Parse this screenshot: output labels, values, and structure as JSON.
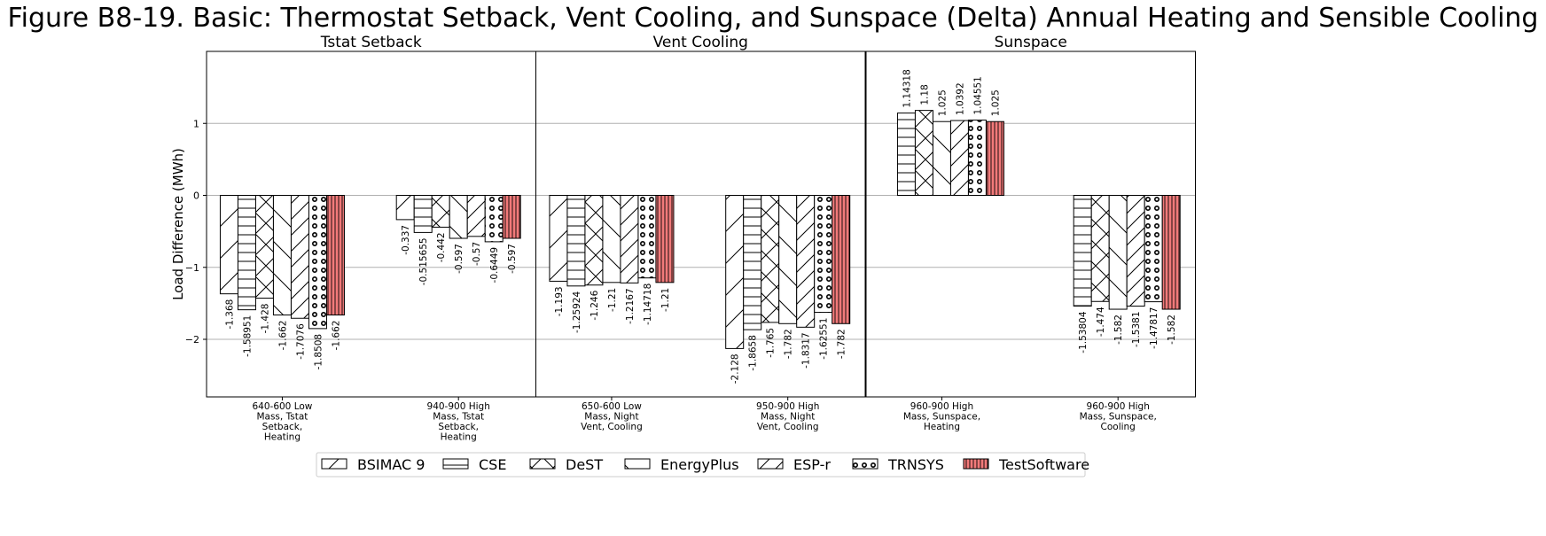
{
  "title": "Figure B8-19. Basic: Thermostat Setback, Vent Cooling, and Sunspace (Delta) Annual Heating and Sensible Cooling",
  "chart_data": {
    "type": "bar",
    "title": "Figure B8-19. Basic: Thermostat Setback, Vent Cooling, and Sunspace (Delta) Annual Heating and Sensible Cooling",
    "ylabel": "Load Difference (MWh)",
    "ylim": [
      -2.8,
      2.0
    ],
    "yticks": [
      -2,
      -1,
      0,
      1
    ],
    "grid": true,
    "legend_position": "bottom",
    "colors": {
      "TestSoftware": "#f27a7a",
      "default_fill": "#ffffff",
      "edge": "#000000"
    },
    "legend": [
      {
        "name": "BSIMAC 9",
        "pattern": "diag-up"
      },
      {
        "name": "CSE",
        "pattern": "horizontal"
      },
      {
        "name": "DeST",
        "pattern": "cross"
      },
      {
        "name": "EnergyPlus",
        "pattern": "diag-down"
      },
      {
        "name": "ESP-r",
        "pattern": "diag-up-dense"
      },
      {
        "name": "TRNSYS",
        "pattern": "circles"
      },
      {
        "name": "TestSoftware",
        "pattern": "vertical-red"
      }
    ],
    "panels": [
      {
        "title": "Tstat Setback",
        "groups": [
          {
            "label": [
              "640-600 Low",
              "Mass, Tstat",
              "Setback,",
              "Heating"
            ],
            "bars": [
              {
                "series": "BSIMAC 9",
                "value": -1.368,
                "label": "-1.368"
              },
              {
                "series": "CSE",
                "value": -1.58951,
                "label": "-1.58951"
              },
              {
                "series": "DeST",
                "value": -1.428,
                "label": "-1.428"
              },
              {
                "series": "EnergyPlus",
                "value": -1.662,
                "label": "-1.662"
              },
              {
                "series": "ESP-r",
                "value": -1.7076,
                "label": "-1.7076"
              },
              {
                "series": "TRNSYS",
                "value": -1.8508,
                "label": "-1.8508"
              },
              {
                "series": "TestSoftware",
                "value": -1.662,
                "label": "-1.662"
              }
            ]
          },
          {
            "label": [
              "940-900 High",
              "Mass, Tstat",
              "Setback,",
              "Heating"
            ],
            "bars": [
              {
                "series": "BSIMAC 9",
                "value": -0.337,
                "label": "-0.337"
              },
              {
                "series": "CSE",
                "value": -0.515655,
                "label": "-0.515655"
              },
              {
                "series": "DeST",
                "value": -0.442,
                "label": "-0.442"
              },
              {
                "series": "EnergyPlus",
                "value": -0.597,
                "label": "-0.597"
              },
              {
                "series": "ESP-r",
                "value": -0.57,
                "label": "-0.57"
              },
              {
                "series": "TRNSYS",
                "value": -0.6449,
                "label": "-0.6449"
              },
              {
                "series": "TestSoftware",
                "value": -0.597,
                "label": "-0.597"
              }
            ]
          }
        ]
      },
      {
        "title": "Vent Cooling",
        "groups": [
          {
            "label": [
              "650-600 Low",
              "Mass, Night",
              "Vent, Cooling"
            ],
            "bars": [
              {
                "series": "BSIMAC 9",
                "value": -1.193,
                "label": "-1.193"
              },
              {
                "series": "CSE",
                "value": -1.25924,
                "label": "-1.25924"
              },
              {
                "series": "DeST",
                "value": -1.246,
                "label": "-1.246"
              },
              {
                "series": "EnergyPlus",
                "value": -1.21,
                "label": "-1.21"
              },
              {
                "series": "ESP-r",
                "value": -1.2167,
                "label": "-1.2167"
              },
              {
                "series": "TRNSYS",
                "value": -1.14718,
                "label": "-1.14718"
              },
              {
                "series": "TestSoftware",
                "value": -1.21,
                "label": "-1.21"
              }
            ]
          },
          {
            "label": [
              "950-900 High",
              "Mass, Night",
              "Vent, Cooling"
            ],
            "bars": [
              {
                "series": "BSIMAC 9",
                "value": -2.128,
                "label": "-2.128"
              },
              {
                "series": "CSE",
                "value": -1.8658,
                "label": "-1.8658"
              },
              {
                "series": "DeST",
                "value": -1.765,
                "label": "-1.765"
              },
              {
                "series": "EnergyPlus",
                "value": -1.782,
                "label": "-1.782"
              },
              {
                "series": "ESP-r",
                "value": -1.8317,
                "label": "-1.8317"
              },
              {
                "series": "TRNSYS",
                "value": -1.62551,
                "label": "-1.62551"
              },
              {
                "series": "TestSoftware",
                "value": -1.782,
                "label": "-1.782"
              }
            ]
          }
        ]
      },
      {
        "title": "Sunspace",
        "groups": [
          {
            "label": [
              "960-900 High",
              "Mass, Sunspace,",
              "Heating"
            ],
            "bars": [
              {
                "series": "CSE",
                "value": 1.14318,
                "label": "1.14318"
              },
              {
                "series": "DeST",
                "value": 1.18,
                "label": "1.18"
              },
              {
                "series": "EnergyPlus",
                "value": 1.025,
                "label": "1.025"
              },
              {
                "series": "ESP-r",
                "value": 1.0392,
                "label": "1.0392"
              },
              {
                "series": "TRNSYS",
                "value": 1.04551,
                "label": "1.04551"
              },
              {
                "series": "TestSoftware",
                "value": 1.025,
                "label": "1.025"
              }
            ]
          },
          {
            "label": [
              "960-900 High",
              "Mass, Sunspace,",
              "Cooling"
            ],
            "bars": [
              {
                "series": "CSE",
                "value": -1.53804,
                "label": "-1.53804"
              },
              {
                "series": "DeST",
                "value": -1.474,
                "label": "-1.474"
              },
              {
                "series": "EnergyPlus",
                "value": -1.582,
                "label": "-1.582"
              },
              {
                "series": "ESP-r",
                "value": -1.5381,
                "label": "-1.5381"
              },
              {
                "series": "TRNSYS",
                "value": -1.47817,
                "label": "-1.47817"
              },
              {
                "series": "TestSoftware",
                "value": -1.582,
                "label": "-1.582"
              }
            ]
          }
        ]
      }
    ]
  }
}
